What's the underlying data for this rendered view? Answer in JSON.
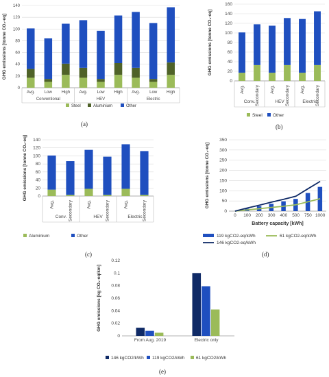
{
  "chart_data": [
    {
      "panel_label": "(a)",
      "type": "bar",
      "stacked": true,
      "ylabel": "GHG emissions [tonne CO₂-eq]",
      "ylim": [
        0,
        140
      ],
      "yticks": [
        0,
        20,
        40,
        60,
        80,
        100,
        120,
        140
      ],
      "grid": true,
      "legend_position": "bottom",
      "categories": [
        "Avg.",
        "Low",
        "High",
        "Avg.",
        "Low",
        "High",
        "Avg.",
        "Low",
        "High"
      ],
      "groups": [
        {
          "label": "Conventional",
          "span": [
            0,
            3
          ]
        },
        {
          "label": "HEV",
          "span": [
            3,
            6
          ]
        },
        {
          "label": "Electric",
          "span": [
            6,
            9
          ]
        }
      ],
      "series": [
        {
          "name": "Steel",
          "color": "#9bbb59",
          "values": [
            17,
            10,
            22,
            17,
            10,
            22,
            17,
            10,
            22
          ]
        },
        {
          "name": "Aluminium",
          "color": "#4f6228",
          "values": [
            15,
            5,
            19,
            17,
            5,
            20,
            17,
            5,
            21
          ]
        },
        {
          "name": "Other",
          "color": "#1f4fbf",
          "values": [
            69,
            69,
            68,
            81,
            82,
            81,
            95,
            95,
            94
          ]
        }
      ]
    },
    {
      "panel_label": "(b)",
      "type": "bar",
      "stacked": true,
      "ylabel": "GHG emissions [tonne CO₂-eq]",
      "ylim": [
        0,
        160
      ],
      "yticks": [
        0,
        20,
        40,
        60,
        80,
        100,
        120,
        140,
        160
      ],
      "grid": true,
      "legend_position": "bottom",
      "categories": [
        "Avg.",
        "Secondary",
        "Avg.",
        "Secondary",
        "Avg.",
        "Secondary"
      ],
      "groups": [
        {
          "label": "Conv.",
          "span": [
            0,
            2
          ]
        },
        {
          "label": "HEV",
          "span": [
            2,
            4
          ]
        },
        {
          "label": "Electric",
          "span": [
            4,
            6
          ]
        }
      ],
      "series": [
        {
          "name": "Steel",
          "color": "#9bbb59",
          "values": [
            17,
            33,
            17,
            33,
            17,
            33
          ]
        },
        {
          "name": "Other",
          "color": "#1f4fbf",
          "values": [
            84,
            85,
            98,
            98,
            112,
            112
          ]
        }
      ]
    },
    {
      "panel_label": "(c)",
      "type": "bar",
      "stacked": true,
      "ylabel": "GHG emissions [tonne CO₂-eq]",
      "ylim": [
        0,
        140
      ],
      "yticks": [
        0,
        20,
        40,
        60,
        80,
        100,
        120,
        140
      ],
      "grid": true,
      "legend_position": "bottom",
      "categories": [
        "Avg.",
        "Secondary",
        "Avg.",
        "Secondary",
        "Avg.",
        "Secondary"
      ],
      "groups": [
        {
          "label": "Conv.",
          "span": [
            0,
            2
          ]
        },
        {
          "label": "HEV",
          "span": [
            2,
            4
          ]
        },
        {
          "label": "Electric",
          "span": [
            4,
            6
          ]
        }
      ],
      "series": [
        {
          "name": "Aluminium",
          "color": "#9bbb59",
          "values": [
            16,
            3,
            18,
            3,
            18,
            3
          ]
        },
        {
          "name": "Other",
          "color": "#1f4fbf",
          "values": [
            85,
            84,
            97,
            95,
            111,
            109
          ]
        }
      ]
    },
    {
      "panel_label": "(d)",
      "type": "bar+line",
      "ylabel": "GHG emissions [tonne CO₂-eq]",
      "xlabel": "Battery capacity [kWh]",
      "ylim": [
        0,
        350
      ],
      "yticks": [
        0,
        50,
        100,
        150,
        200,
        250,
        300,
        350
      ],
      "grid": true,
      "legend_position": "bottom",
      "categories": [
        "0",
        "100",
        "200",
        "300",
        "400",
        "500",
        "750",
        "1000"
      ],
      "series": [
        {
          "name": "119 kgCO2-eq/kWh",
          "kind": "bar",
          "color": "#1f4fbf",
          "values": [
            0,
            12,
            24,
            36,
            48,
            60,
            89,
            119
          ]
        },
        {
          "name": "61 kgCO2-eq/kWh",
          "kind": "line",
          "color": "#9bbb59",
          "values": [
            0,
            6,
            12,
            18,
            24,
            31,
            46,
            61
          ]
        },
        {
          "name": "146 kgCO2-eq/kWh",
          "kind": "line",
          "color": "#0f2a66",
          "values": [
            0,
            15,
            29,
            44,
            58,
            73,
            110,
            146
          ]
        }
      ]
    },
    {
      "panel_label": "(e)",
      "type": "bar",
      "ylabel": "GHG emissions [kg CO₂-eq/km]",
      "ylim": [
        0,
        0.12
      ],
      "yticks": [
        "0",
        "0.02",
        "0.04",
        "0.06",
        "0.08",
        "0.1",
        "0.12"
      ],
      "grid": false,
      "legend_position": "bottom",
      "categories": [
        "From Aug. 2019",
        "Electric only"
      ],
      "series": [
        {
          "name": "146 kgCO2/kWh",
          "color": "#0f2a66",
          "values": [
            0.013,
            0.1
          ]
        },
        {
          "name": "119 kgCO2/kWh",
          "color": "#1f4fbf",
          "values": [
            0.008,
            0.079
          ]
        },
        {
          "name": "61 kgCO2/kWh",
          "color": "#9bbb59",
          "values": [
            0.005,
            0.042
          ]
        }
      ]
    }
  ]
}
